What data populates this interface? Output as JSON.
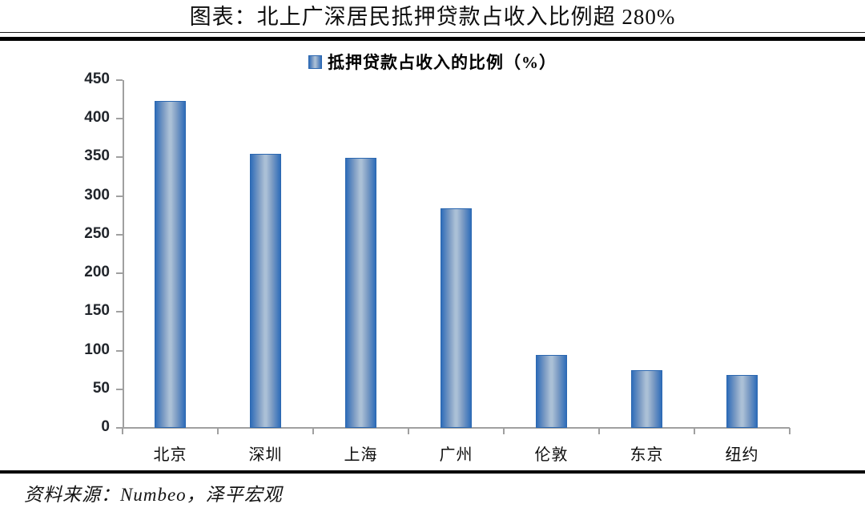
{
  "page": {
    "title": "图表：北上广深居民抵押贷款占收入比例超 280%",
    "source": "资料来源：Numbeo，泽平宏观"
  },
  "chart_data": {
    "type": "bar",
    "title": "图表：北上广深居民抵押贷款占收入比例超 280%",
    "legend": "抵押贷款占收入的比例（%）",
    "legend_position": "top-center",
    "categories": [
      "北京",
      "深圳",
      "上海",
      "广州",
      "伦敦",
      "东京",
      "纽约"
    ],
    "values": [
      423,
      355,
      349,
      284,
      94,
      75,
      68
    ],
    "xlabel": "",
    "ylabel": "",
    "ylim": [
      0,
      450
    ],
    "ytick_step": 50,
    "yticks": [
      0,
      50,
      100,
      150,
      200,
      250,
      300,
      350,
      400,
      450
    ],
    "grid": false,
    "colors": {
      "bar_edge": "#2f6db9",
      "bar_mid": "#7d9cc4",
      "bar_center": "#abc0d6",
      "bar_border": "#2b67b0",
      "axis": "#a0a0a0",
      "tick_text": "#21252b",
      "title_text": "#0d0d0d",
      "rule": "#000000"
    }
  }
}
